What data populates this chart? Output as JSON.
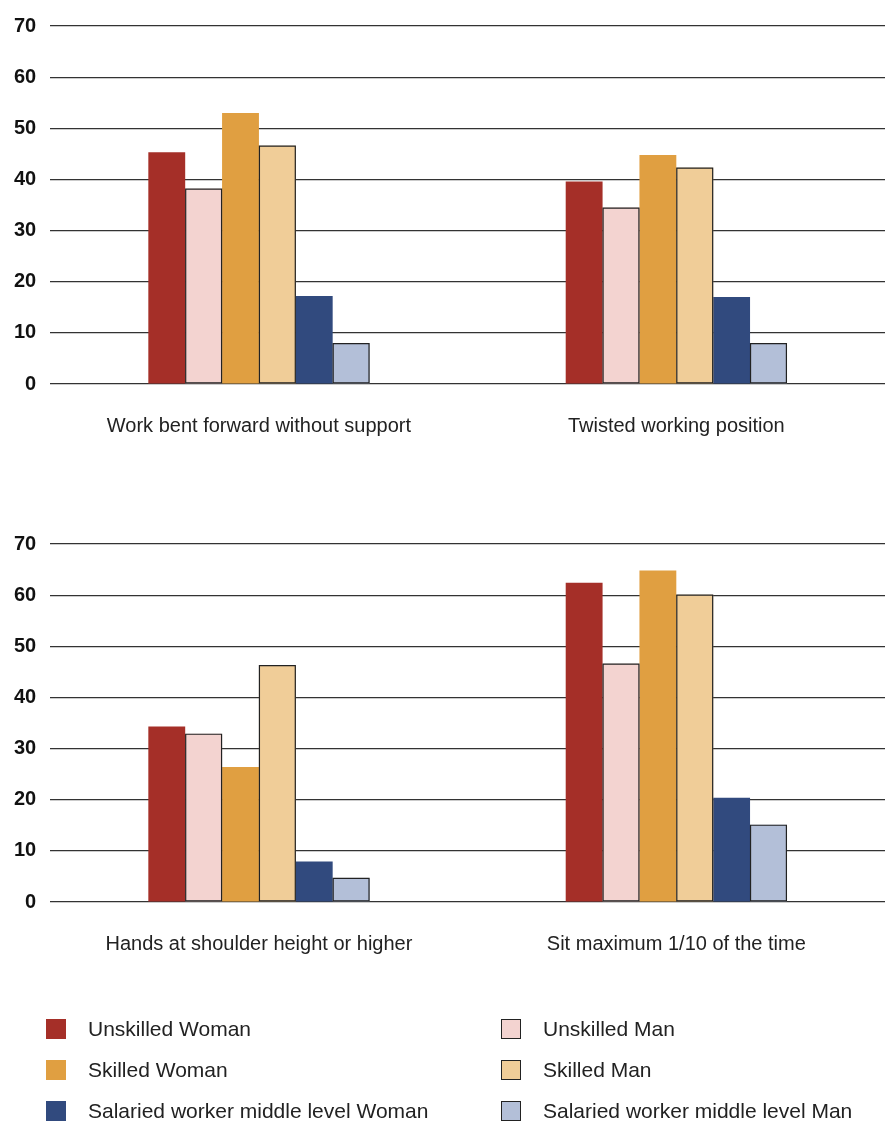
{
  "chart_data": [
    {
      "type": "bar",
      "categories": [
        "Work bent forward without support",
        "Twisted working position"
      ],
      "ylim": [
        0,
        70
      ],
      "yticks": [
        0,
        10,
        20,
        30,
        40,
        50,
        60,
        70
      ],
      "grid": "y",
      "series": [
        {
          "color": "#a52f28",
          "values": [
            45.3,
            39.6
          ]
        },
        {
          "color": "#f3d3d0",
          "values": [
            38.2,
            34.5
          ]
        },
        {
          "color": "#e09f41",
          "values": [
            53,
            44.8
          ]
        },
        {
          "color": "#f0cd98",
          "values": [
            46.6,
            42.3
          ]
        },
        {
          "color": "#314a7e",
          "values": [
            17.2,
            17
          ]
        },
        {
          "color": "#b3bfd8",
          "values": [
            8,
            8
          ]
        }
      ]
    },
    {
      "type": "bar",
      "categories": [
        "Hands at shoulder height or higher",
        "Sit maximum 1/10 of the time"
      ],
      "ylim": [
        0,
        70
      ],
      "yticks": [
        0,
        10,
        20,
        30,
        40,
        50,
        60,
        70
      ],
      "grid": "y",
      "legend": "bottom",
      "series": [
        {
          "name": "Unskilled Woman",
          "color": "#a52f28",
          "values": [
            34.3,
            62.4
          ]
        },
        {
          "name": "Unskilled Man",
          "color": "#f3d3d0",
          "values": [
            32.9,
            46.6
          ]
        },
        {
          "name": "Skilled Woman",
          "color": "#e09f41",
          "values": [
            26.4,
            64.8
          ]
        },
        {
          "name": "Skilled Man",
          "color": "#f0cd98",
          "values": [
            46.3,
            60.1
          ]
        },
        {
          "name": "Salaried worker middle level Woman",
          "color": "#314a7e",
          "values": [
            7.9,
            20.4
          ]
        },
        {
          "name": "Salaried worker middle level Man",
          "color": "#b3bfd8",
          "values": [
            4.7,
            15.1
          ]
        }
      ]
    }
  ]
}
